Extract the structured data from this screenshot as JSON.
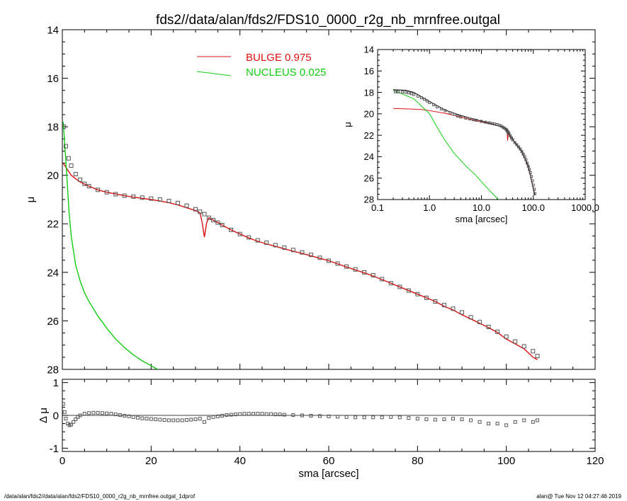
{
  "title": "fds2//data/alan/fds2/FDS10_0000_r2g_nb_mrnfree.outgal",
  "footer": {
    "left": "/data/alan/fds2//data/alan/fds2/FDS10_0000_r2g_nb_mrnfree.outgal_1dprof",
    "right": "alan@  Tue Nov 12 04:27:46 2019"
  },
  "colors": {
    "bulge": "#dd1111",
    "nucleus": "#11cc11",
    "data": "#555555",
    "axis": "#000000"
  },
  "chart_data": [
    {
      "id": "main",
      "type": "line+scatter",
      "xlabel": "",
      "ylabel": "μ",
      "xlim": [
        0,
        120
      ],
      "ylim": [
        28,
        14
      ],
      "xticks": [
        0,
        20,
        40,
        60,
        80,
        100,
        120
      ],
      "yticks": [
        14,
        16,
        18,
        20,
        22,
        24,
        26,
        28
      ],
      "legend": {
        "placement": "top-center",
        "entries": [
          {
            "label": "BULGE",
            "value": "0.975",
            "color": "#dd1111"
          },
          {
            "label": "NUCLEUS",
            "value": "0.025",
            "color": "#11cc11"
          }
        ]
      },
      "series": [
        {
          "name": "BULGE",
          "kind": "line",
          "color": "#dd1111",
          "x": [
            0.2,
            2,
            4,
            6,
            8,
            10,
            12,
            14,
            16,
            18,
            20,
            22,
            24,
            26,
            28,
            30,
            31,
            31.5,
            32,
            32.5,
            33,
            34,
            36,
            38,
            40,
            42,
            44,
            46,
            48,
            50,
            52,
            54,
            56,
            58,
            60,
            62,
            64,
            66,
            68,
            70,
            72,
            74,
            76,
            78,
            80,
            82,
            84,
            86,
            88,
            90,
            92,
            94,
            96,
            98,
            100,
            102,
            104,
            106,
            107
          ],
          "y": [
            19.5,
            20.0,
            20.28,
            20.45,
            20.6,
            20.7,
            20.77,
            20.84,
            20.9,
            20.95,
            21.0,
            21.06,
            21.13,
            21.22,
            21.34,
            21.45,
            21.55,
            21.95,
            22.55,
            21.95,
            21.75,
            21.85,
            22.05,
            22.25,
            22.42,
            22.58,
            22.72,
            22.83,
            22.93,
            23.03,
            23.13,
            23.22,
            23.32,
            23.42,
            23.52,
            23.65,
            23.78,
            23.9,
            24.02,
            24.15,
            24.3,
            24.45,
            24.6,
            24.75,
            24.9,
            25.05,
            25.2,
            25.4,
            25.55,
            25.75,
            25.92,
            26.1,
            26.28,
            26.48,
            26.75,
            26.95,
            27.15,
            27.5,
            27.6
          ]
        },
        {
          "name": "NUCLEUS",
          "kind": "line",
          "color": "#11cc11",
          "x": [
            0.2,
            0.5,
            1,
            1.5,
            2,
            3,
            4,
            5,
            6,
            8,
            10,
            12,
            14,
            16,
            18,
            20,
            22
          ],
          "y": [
            17.8,
            18.6,
            20.0,
            21.5,
            22.5,
            23.7,
            24.35,
            24.85,
            25.2,
            25.8,
            26.3,
            26.75,
            27.1,
            27.4,
            27.65,
            27.85,
            28.05
          ]
        },
        {
          "name": "data",
          "kind": "markers",
          "color": "#555555",
          "x": [
            0.3,
            0.8,
            1.4,
            2,
            3,
            4,
            5,
            6,
            8,
            10,
            12,
            14,
            16,
            18,
            20,
            22,
            24,
            26,
            28,
            30,
            31,
            32,
            33,
            34,
            35,
            36,
            38,
            40,
            42,
            44,
            46,
            48,
            50,
            52,
            54,
            56,
            58,
            60,
            62,
            64,
            66,
            68,
            70,
            72,
            74,
            76,
            78,
            80,
            82,
            84,
            86,
            88,
            90,
            92,
            94,
            96,
            98,
            100,
            102,
            104,
            106,
            107
          ],
          "y": [
            18.0,
            18.8,
            19.3,
            19.6,
            19.95,
            20.18,
            20.35,
            20.45,
            20.6,
            20.7,
            20.78,
            20.84,
            20.88,
            20.92,
            20.96,
            21.0,
            21.06,
            21.14,
            21.25,
            21.4,
            21.5,
            21.6,
            21.75,
            21.85,
            21.95,
            22.05,
            22.25,
            22.42,
            22.56,
            22.68,
            22.78,
            22.88,
            22.98,
            23.08,
            23.18,
            23.28,
            23.4,
            23.52,
            23.64,
            23.76,
            23.88,
            24.0,
            24.12,
            24.28,
            24.45,
            24.6,
            24.75,
            24.9,
            25.05,
            25.2,
            25.35,
            25.5,
            25.65,
            25.85,
            26.05,
            26.25,
            26.45,
            26.65,
            26.85,
            27.05,
            27.25,
            27.45
          ]
        }
      ]
    },
    {
      "id": "residual",
      "type": "scatter",
      "xlabel": "sma [arcsec]",
      "ylabel": "Δ μ",
      "xlim": [
        0,
        120
      ],
      "ylim": [
        -1.1,
        1.1
      ],
      "xticks": [
        0,
        20,
        40,
        60,
        80,
        100,
        120
      ],
      "yticks": [
        -1,
        0,
        1
      ],
      "zero_line": true,
      "series": [
        {
          "name": "residual",
          "kind": "markers",
          "color": "#555555",
          "x": [
            0.2,
            0.5,
            0.8,
            1.2,
            1.6,
            2,
            2.5,
            3,
            3.5,
            4,
            5,
            6,
            7,
            8,
            9,
            10,
            11,
            12,
            13,
            14,
            15,
            16,
            17,
            18,
            19,
            20,
            21,
            22,
            23,
            24,
            25,
            26,
            27,
            28,
            29,
            30,
            31,
            32,
            33,
            34,
            35,
            36,
            37,
            38,
            39,
            40,
            41,
            42,
            43,
            44,
            45,
            46,
            47,
            48,
            49,
            50,
            52,
            54,
            56,
            58,
            60,
            62,
            64,
            66,
            68,
            70,
            72,
            74,
            76,
            78,
            80,
            82,
            84,
            86,
            88,
            90,
            92,
            94,
            96,
            98,
            100,
            102,
            104,
            106,
            107
          ],
          "y": [
            0.35,
            0.1,
            -0.1,
            -0.25,
            -0.3,
            -0.28,
            -0.2,
            -0.12,
            -0.05,
            0.0,
            0.05,
            0.07,
            0.08,
            0.08,
            0.07,
            0.06,
            0.05,
            0.03,
            0.01,
            -0.01,
            -0.03,
            -0.05,
            -0.07,
            -0.09,
            -0.1,
            -0.11,
            -0.12,
            -0.13,
            -0.14,
            -0.15,
            -0.15,
            -0.15,
            -0.15,
            -0.14,
            -0.13,
            -0.12,
            -0.1,
            -0.2,
            -0.08,
            -0.05,
            -0.03,
            -0.01,
            0.01,
            0.02,
            0.03,
            0.04,
            0.05,
            0.05,
            0.05,
            0.05,
            0.05,
            0.04,
            0.04,
            0.03,
            0.03,
            0.02,
            0.01,
            0.0,
            -0.01,
            -0.02,
            -0.03,
            -0.04,
            -0.05,
            -0.06,
            -0.06,
            -0.06,
            -0.06,
            -0.05,
            -0.06,
            -0.08,
            -0.1,
            -0.12,
            -0.13,
            -0.12,
            -0.1,
            -0.12,
            -0.15,
            -0.2,
            -0.25,
            -0.25,
            -0.3,
            -0.2,
            -0.15,
            -0.2,
            -0.15
          ]
        }
      ]
    },
    {
      "id": "inset",
      "type": "line+scatter",
      "xscale": "log",
      "xlabel": "sma [arcsec]",
      "ylabel": "μ",
      "xlim": [
        0.1,
        1000
      ],
      "ylim": [
        28,
        14
      ],
      "xticks": [
        0.1,
        1,
        10,
        100,
        1000
      ],
      "xticklabels": [
        "0.1",
        "1.0",
        "10.0",
        "100.0",
        "1000.0"
      ],
      "yticks": [
        14,
        16,
        18,
        20,
        22,
        24,
        26,
        28
      ],
      "series": [
        {
          "name": "BULGE",
          "kind": "line",
          "color": "#dd1111",
          "x": [
            0.2,
            0.4,
            0.7,
            1,
            2,
            4,
            8,
            15,
            25,
            31,
            32,
            33,
            40,
            60,
            80,
            107
          ],
          "y": [
            19.5,
            19.55,
            19.6,
            19.7,
            19.95,
            20.3,
            20.65,
            20.95,
            21.2,
            21.5,
            22.5,
            21.8,
            22.4,
            23.5,
            24.9,
            27.6
          ]
        },
        {
          "name": "NUCLEUS",
          "kind": "line",
          "color": "#11cc11",
          "x": [
            0.2,
            0.5,
            1,
            1.5,
            2,
            3,
            5,
            8,
            12,
            16,
            22
          ],
          "y": [
            17.8,
            18.6,
            20.0,
            21.5,
            22.5,
            23.7,
            24.85,
            25.8,
            26.75,
            27.4,
            28.05
          ]
        },
        {
          "name": "model",
          "kind": "line",
          "color": "#000000",
          "x": [
            0.2,
            0.35,
            0.5,
            0.7,
            1,
            2,
            4,
            8,
            15,
            25,
            30,
            33,
            40,
            60,
            80,
            107
          ],
          "y": [
            17.75,
            17.8,
            18.0,
            18.4,
            18.85,
            19.65,
            20.15,
            20.55,
            20.9,
            21.2,
            21.4,
            21.8,
            22.4,
            23.5,
            24.9,
            27.6
          ]
        },
        {
          "name": "data",
          "kind": "markers",
          "color": "#555555",
          "x": [
            0.22,
            0.25,
            0.3,
            0.35,
            0.4,
            0.45,
            0.5,
            0.6,
            0.7,
            0.8,
            0.9,
            1.0,
            1.2,
            1.4,
            1.7,
            2.0,
            2.5,
            3,
            3.5,
            4,
            5,
            6,
            7,
            8,
            10,
            12,
            14,
            16,
            18,
            20,
            22,
            24,
            26,
            28,
            30,
            31,
            32,
            33,
            34,
            36,
            38,
            40,
            44,
            48,
            52,
            56,
            60,
            64,
            68,
            72,
            76,
            80,
            84,
            88,
            92,
            96,
            100,
            104,
            107
          ],
          "y": [
            17.95,
            17.95,
            17.97,
            18.0,
            18.05,
            18.12,
            18.2,
            18.35,
            18.5,
            18.65,
            18.8,
            18.95,
            19.15,
            19.35,
            19.55,
            19.7,
            19.9,
            20.05,
            20.2,
            20.3,
            20.4,
            20.48,
            20.55,
            20.6,
            20.7,
            20.78,
            20.84,
            20.9,
            20.95,
            21.0,
            21.06,
            21.14,
            21.25,
            21.35,
            21.45,
            21.55,
            21.65,
            21.75,
            21.85,
            22.05,
            22.25,
            22.42,
            22.68,
            22.88,
            23.08,
            23.28,
            23.52,
            23.76,
            24.0,
            24.28,
            24.6,
            24.9,
            25.2,
            25.5,
            25.85,
            26.25,
            26.65,
            27.05,
            27.45
          ]
        }
      ]
    }
  ]
}
